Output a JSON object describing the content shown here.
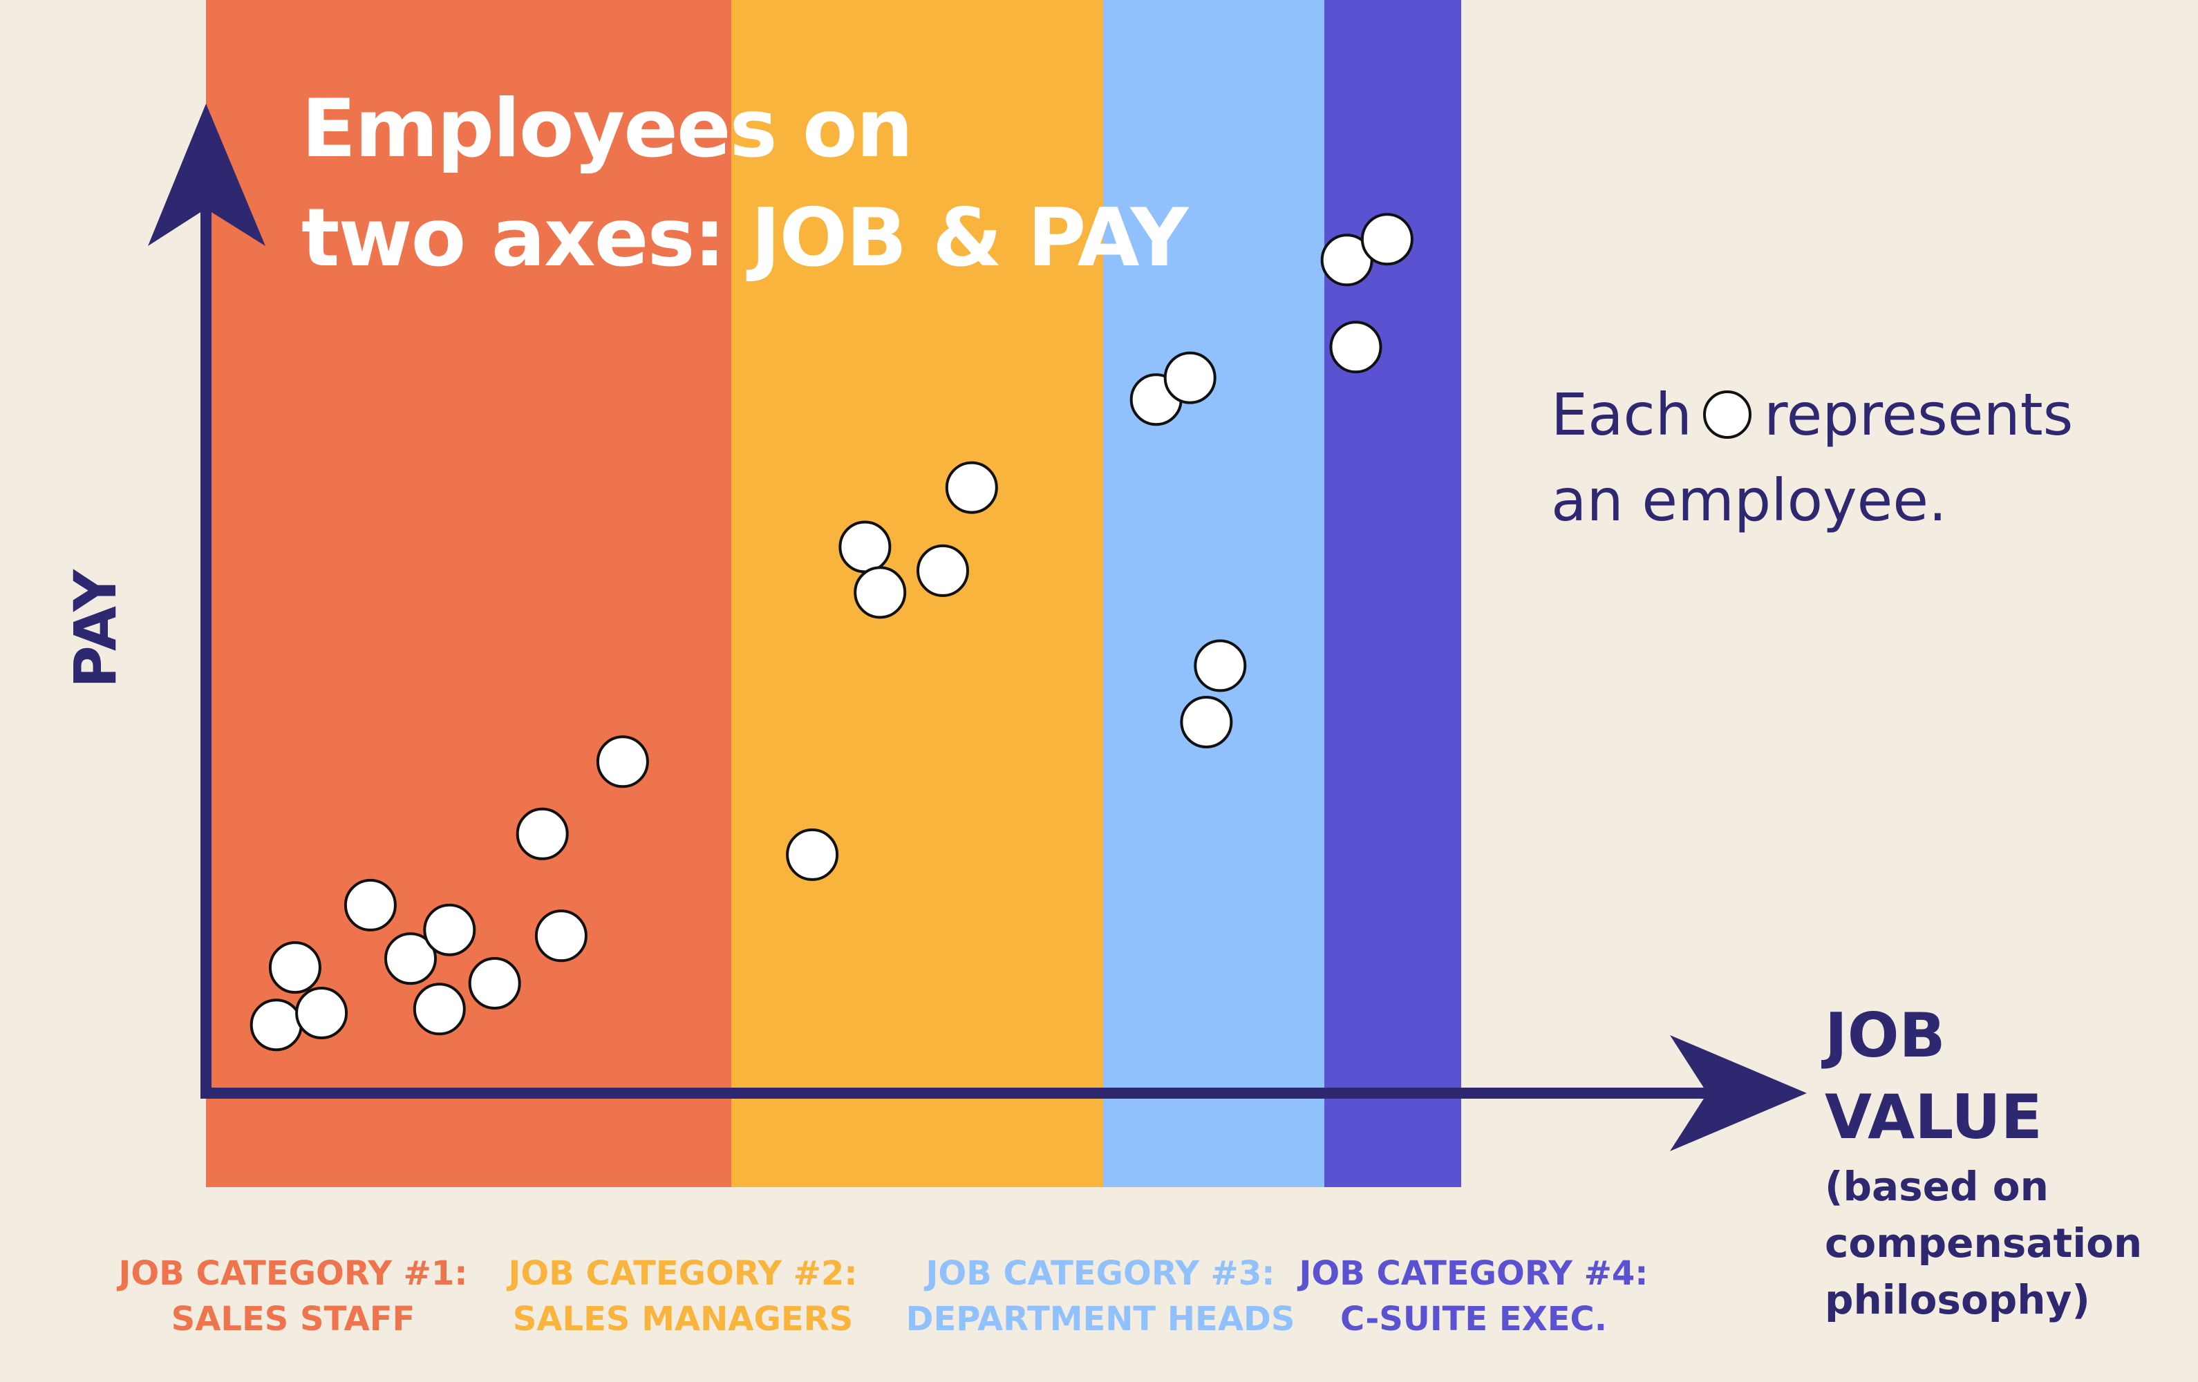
{
  "title": {
    "line1": "Employees on",
    "line2": "two axes: JOB & PAY"
  },
  "axes": {
    "y_label": "PAY",
    "x_label_line1": "JOB",
    "x_label_line2": "VALUE",
    "x_sub_line1": "(based on",
    "x_sub_line2": "compensation",
    "x_sub_line3": "philosophy)",
    "axis_color": "#2e2870"
  },
  "legend": {
    "text_before": "Each",
    "text_after": "represents",
    "line2": "an employee.",
    "marker_icon": "employee-circle-icon"
  },
  "categories": [
    {
      "line1": "JOB CATEGORY #1:",
      "line2": "SALES STAFF",
      "color": "#ee744d"
    },
    {
      "line1": "JOB CATEGORY #2:",
      "line2": "SALES MANAGERS",
      "color": "#f8b43d"
    },
    {
      "line1": "JOB CATEGORY #3:",
      "line2": "DEPARTMENT HEADS",
      "color": "#90c1fc"
    },
    {
      "line1": "JOB CATEGORY #4:",
      "line2": "C-SUITE EXEC.",
      "color": "#5b52d2"
    }
  ],
  "chart_data": {
    "type": "scatter",
    "marker": "white circle with black outline",
    "x_scale": {
      "min": 0,
      "max": 1
    },
    "y_scale": {
      "min": 0,
      "max": 1
    },
    "note": "Values are relative positions on unlabeled JOB VALUE (x) and PAY (y) axes",
    "points": [
      {
        "category": 1,
        "x": 0.056,
        "y": 0.069
      },
      {
        "category": 1,
        "x": 0.092,
        "y": 0.081
      },
      {
        "category": 1,
        "x": 0.071,
        "y": 0.127
      },
      {
        "category": 1,
        "x": 0.131,
        "y": 0.19
      },
      {
        "category": 1,
        "x": 0.163,
        "y": 0.136
      },
      {
        "category": 1,
        "x": 0.186,
        "y": 0.085
      },
      {
        "category": 1,
        "x": 0.194,
        "y": 0.165
      },
      {
        "category": 1,
        "x": 0.23,
        "y": 0.111
      },
      {
        "category": 1,
        "x": 0.268,
        "y": 0.262
      },
      {
        "category": 1,
        "x": 0.283,
        "y": 0.159
      },
      {
        "category": 1,
        "x": 0.332,
        "y": 0.335
      },
      {
        "category": 2,
        "x": 0.483,
        "y": 0.241
      },
      {
        "category": 2,
        "x": 0.525,
        "y": 0.552
      },
      {
        "category": 2,
        "x": 0.537,
        "y": 0.506
      },
      {
        "category": 2,
        "x": 0.587,
        "y": 0.528
      },
      {
        "category": 2,
        "x": 0.61,
        "y": 0.612
      },
      {
        "category": 3,
        "x": 0.757,
        "y": 0.701
      },
      {
        "category": 3,
        "x": 0.784,
        "y": 0.723
      },
      {
        "category": 3,
        "x": 0.797,
        "y": 0.375
      },
      {
        "category": 3,
        "x": 0.808,
        "y": 0.432
      },
      {
        "category": 4,
        "x": 0.909,
        "y": 0.842
      },
      {
        "category": 4,
        "x": 0.916,
        "y": 0.754
      },
      {
        "category": 4,
        "x": 0.941,
        "y": 0.863
      }
    ]
  }
}
